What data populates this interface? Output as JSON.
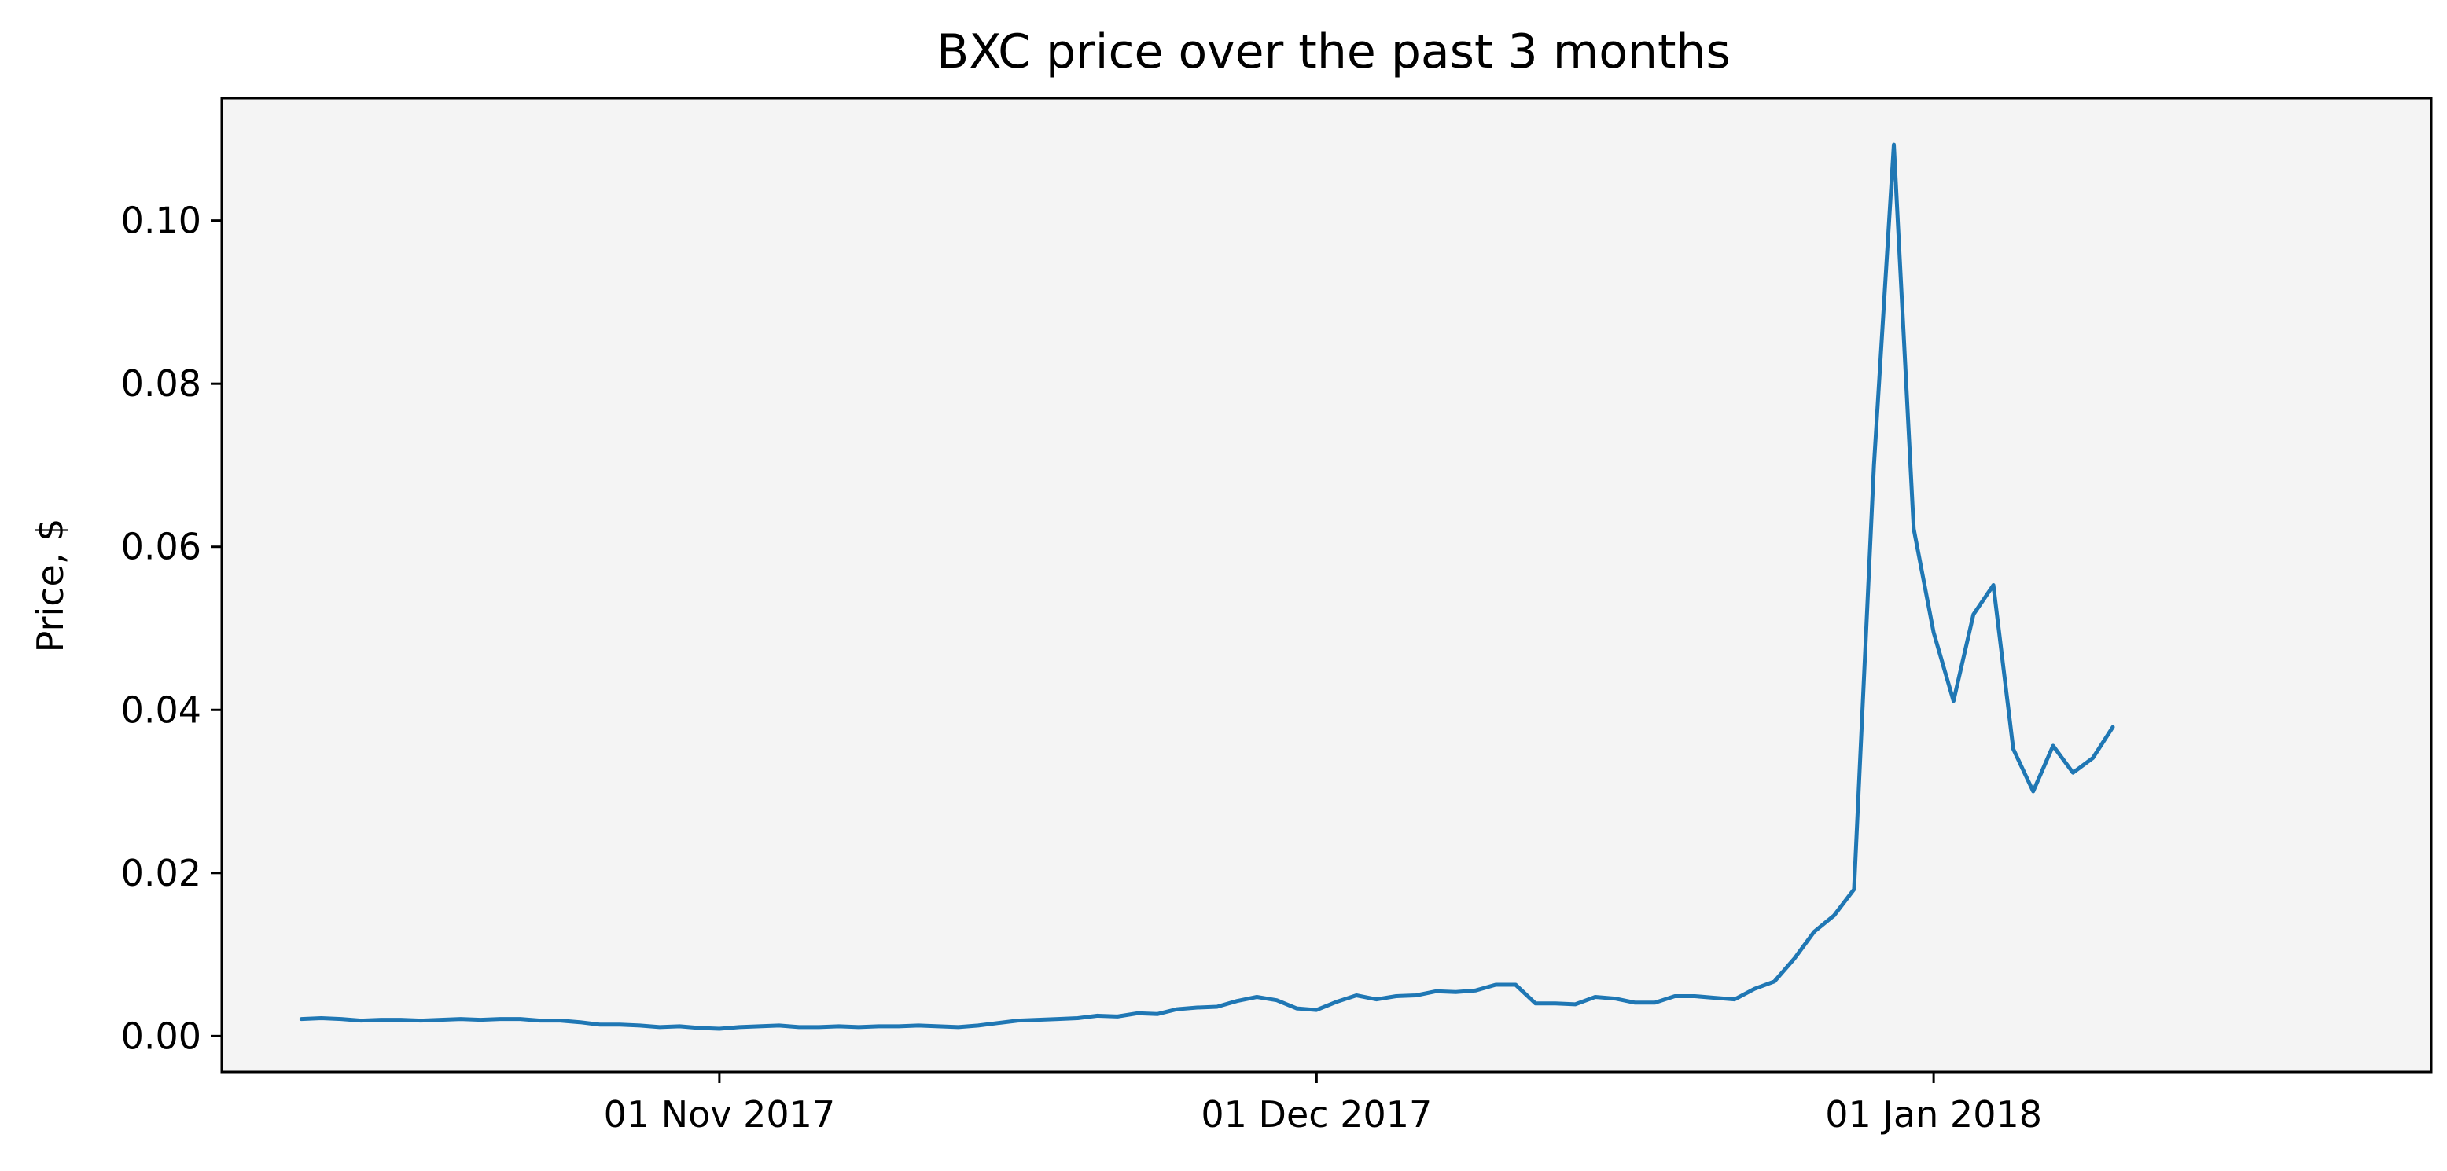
{
  "chart_data": {
    "type": "line",
    "title": "BXC price over the past 3 months",
    "xlabel": "",
    "ylabel": "Price, $",
    "x_ticks": [
      {
        "label": "01 Nov 2017",
        "date": "2017-11-01"
      },
      {
        "label": "01 Dec 2017",
        "date": "2017-12-01"
      },
      {
        "label": "01 Jan 2018",
        "date": "2018-01-01"
      }
    ],
    "y_ticks": [
      {
        "label": "0.00",
        "value": 0.0
      },
      {
        "label": "0.02",
        "value": 0.02
      },
      {
        "label": "0.04",
        "value": 0.04
      },
      {
        "label": "0.06",
        "value": 0.06
      },
      {
        "label": "0.08",
        "value": 0.08
      },
      {
        "label": "0.10",
        "value": 0.1
      }
    ],
    "xlim": [
      "2017-10-07",
      "2018-01-26"
    ],
    "ylim": [
      -0.0044,
      0.115
    ],
    "grid": false,
    "colors": {
      "line": "#1f77b4",
      "plot_background": "#f4f4f4",
      "axes": "#000000"
    },
    "series": [
      {
        "name": "",
        "points": [
          [
            "2017-10-11",
            0.0021
          ],
          [
            "2017-10-12",
            0.0022
          ],
          [
            "2017-10-13",
            0.0021
          ],
          [
            "2017-10-14",
            0.0019
          ],
          [
            "2017-10-15",
            0.002
          ],
          [
            "2017-10-16",
            0.002
          ],
          [
            "2017-10-17",
            0.0019
          ],
          [
            "2017-10-18",
            0.002
          ],
          [
            "2017-10-19",
            0.0021
          ],
          [
            "2017-10-20",
            0.002
          ],
          [
            "2017-10-21",
            0.0021
          ],
          [
            "2017-10-22",
            0.0021
          ],
          [
            "2017-10-23",
            0.0019
          ],
          [
            "2017-10-24",
            0.0019
          ],
          [
            "2017-10-25",
            0.0017
          ],
          [
            "2017-10-26",
            0.0014
          ],
          [
            "2017-10-27",
            0.0014
          ],
          [
            "2017-10-28",
            0.0013
          ],
          [
            "2017-10-29",
            0.0011
          ],
          [
            "2017-10-30",
            0.0012
          ],
          [
            "2017-10-31",
            0.001
          ],
          [
            "2017-11-01",
            0.0009
          ],
          [
            "2017-11-02",
            0.0011
          ],
          [
            "2017-11-03",
            0.0012
          ],
          [
            "2017-11-04",
            0.0013
          ],
          [
            "2017-11-05",
            0.0011
          ],
          [
            "2017-11-06",
            0.0011
          ],
          [
            "2017-11-07",
            0.0012
          ],
          [
            "2017-11-08",
            0.0011
          ],
          [
            "2017-11-09",
            0.0012
          ],
          [
            "2017-11-10",
            0.0012
          ],
          [
            "2017-11-11",
            0.0013
          ],
          [
            "2017-11-12",
            0.0012
          ],
          [
            "2017-11-13",
            0.0011
          ],
          [
            "2017-11-14",
            0.0013
          ],
          [
            "2017-11-15",
            0.0016
          ],
          [
            "2017-11-16",
            0.0019
          ],
          [
            "2017-11-17",
            0.002
          ],
          [
            "2017-11-18",
            0.0021
          ],
          [
            "2017-11-19",
            0.0022
          ],
          [
            "2017-11-20",
            0.0025
          ],
          [
            "2017-11-21",
            0.0024
          ],
          [
            "2017-11-22",
            0.0028
          ],
          [
            "2017-11-23",
            0.0027
          ],
          [
            "2017-11-24",
            0.0033
          ],
          [
            "2017-11-25",
            0.0035
          ],
          [
            "2017-11-26",
            0.0036
          ],
          [
            "2017-11-27",
            0.0043
          ],
          [
            "2017-11-28",
            0.0048
          ],
          [
            "2017-11-29",
            0.0044
          ],
          [
            "2017-11-30",
            0.0034
          ],
          [
            "2017-12-01",
            0.0032
          ],
          [
            "2017-12-02",
            0.0042
          ],
          [
            "2017-12-03",
            0.005
          ],
          [
            "2017-12-04",
            0.0045
          ],
          [
            "2017-12-05",
            0.0049
          ],
          [
            "2017-12-06",
            0.005
          ],
          [
            "2017-12-07",
            0.0055
          ],
          [
            "2017-12-08",
            0.0054
          ],
          [
            "2017-12-09",
            0.0056
          ],
          [
            "2017-12-10",
            0.0063
          ],
          [
            "2017-12-11",
            0.0063
          ],
          [
            "2017-12-12",
            0.004
          ],
          [
            "2017-12-13",
            0.004
          ],
          [
            "2017-12-14",
            0.0039
          ],
          [
            "2017-12-15",
            0.0048
          ],
          [
            "2017-12-16",
            0.0046
          ],
          [
            "2017-12-17",
            0.0041
          ],
          [
            "2017-12-18",
            0.0041
          ],
          [
            "2017-12-19",
            0.0049
          ],
          [
            "2017-12-20",
            0.0049
          ],
          [
            "2017-12-21",
            0.0047
          ],
          [
            "2017-12-22",
            0.0045
          ],
          [
            "2017-12-23",
            0.0058
          ],
          [
            "2017-12-24",
            0.0067
          ],
          [
            "2017-12-25",
            0.0095
          ],
          [
            "2017-12-26",
            0.0128
          ],
          [
            "2017-12-27",
            0.0148
          ],
          [
            "2017-12-28",
            0.018
          ],
          [
            "2017-12-29",
            0.07
          ],
          [
            "2017-12-30",
            0.1093
          ],
          [
            "2017-12-31",
            0.0622
          ],
          [
            "2018-01-01",
            0.0495
          ],
          [
            "2018-01-02",
            0.0411
          ],
          [
            "2018-01-03",
            0.0517
          ],
          [
            "2018-01-04",
            0.0553
          ],
          [
            "2018-01-05",
            0.0352
          ],
          [
            "2018-01-06",
            0.03
          ],
          [
            "2018-01-07",
            0.0356
          ],
          [
            "2018-01-08",
            0.0323
          ],
          [
            "2018-01-09",
            0.0341
          ],
          [
            "2018-01-10",
            0.0379
          ]
        ]
      }
    ]
  }
}
